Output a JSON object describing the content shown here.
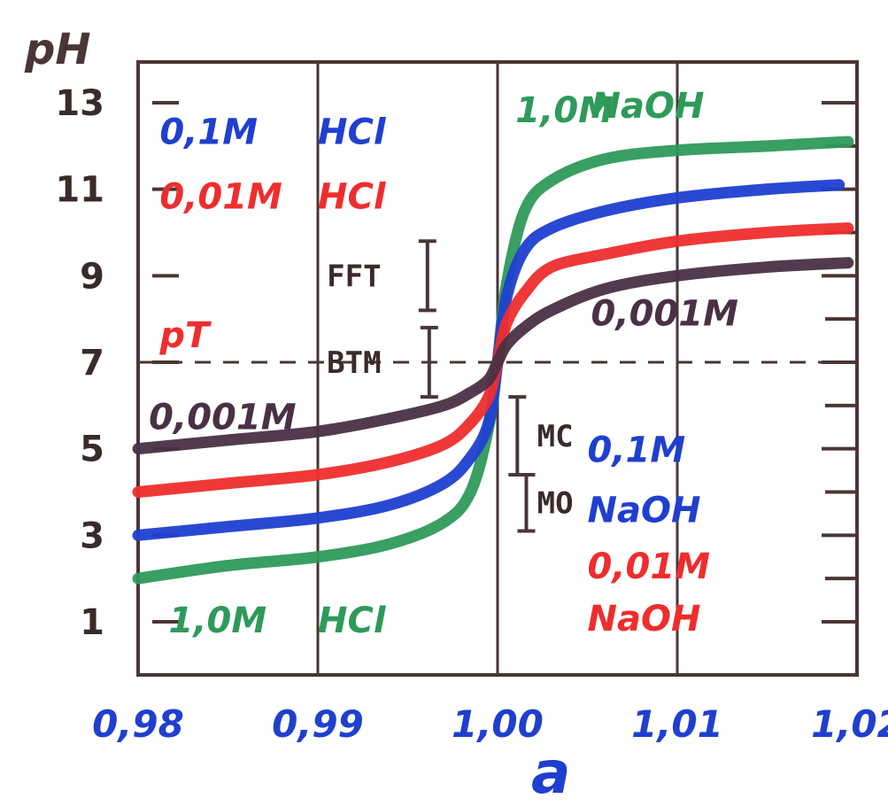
{
  "chart_data": {
    "type": "line",
    "xlabel": "a",
    "ylabel": "pH",
    "xlim": [
      0.98,
      1.02
    ],
    "ylim": [
      0,
      14
    ],
    "x_ticks": [
      "0,98",
      "0,99",
      "1,00",
      "1,01",
      "1,02"
    ],
    "y_ticks": [
      "1",
      "3",
      "5",
      "7",
      "9",
      "11",
      "13"
    ],
    "grid": "vertical",
    "reference_line": {
      "y": 7,
      "style": "dashed"
    },
    "colors": {
      "frame": "#4a3636",
      "green": "#2e9a5a",
      "blue": "#1f3fd0",
      "red": "#ef2d2d",
      "dark": "#4a3046"
    },
    "series": [
      {
        "color": "green",
        "x": [
          0.98,
          0.985,
          0.99,
          0.994,
          0.997,
          0.9985,
          0.9995,
          1.0,
          1.0005,
          1.0015,
          1.003,
          1.006,
          1.01,
          1.015,
          1.0195
        ],
        "y": [
          2.0,
          2.3,
          2.5,
          2.8,
          3.3,
          4.0,
          5.5,
          7.0,
          8.8,
          10.5,
          11.2,
          11.7,
          11.9,
          12.0,
          12.1
        ]
      },
      {
        "color": "blue",
        "x": [
          0.98,
          0.985,
          0.99,
          0.994,
          0.997,
          0.9985,
          0.9995,
          1.0,
          1.0005,
          1.0015,
          1.003,
          1.006,
          1.01,
          1.015,
          1.019
        ],
        "y": [
          3.0,
          3.2,
          3.4,
          3.7,
          4.2,
          4.8,
          5.6,
          7.0,
          8.5,
          9.6,
          10.1,
          10.5,
          10.8,
          11.0,
          11.1
        ]
      },
      {
        "color": "red",
        "x": [
          0.98,
          0.985,
          0.99,
          0.994,
          0.997,
          0.9985,
          0.9995,
          1.0,
          1.0005,
          1.0015,
          1.003,
          1.006,
          1.01,
          1.015,
          1.0195
        ],
        "y": [
          4.0,
          4.2,
          4.4,
          4.7,
          5.1,
          5.6,
          6.2,
          7.0,
          7.9,
          8.6,
          9.2,
          9.5,
          9.8,
          10.0,
          10.1
        ]
      },
      {
        "color": "dark",
        "x": [
          0.98,
          0.985,
          0.99,
          0.994,
          0.997,
          0.9985,
          0.9995,
          1.0,
          1.0005,
          1.0015,
          1.003,
          1.006,
          1.01,
          1.015,
          1.0195
        ],
        "y": [
          5.0,
          5.2,
          5.4,
          5.7,
          6.0,
          6.3,
          6.6,
          7.0,
          7.4,
          7.8,
          8.2,
          8.7,
          9.0,
          9.2,
          9.3
        ]
      }
    ],
    "annotations": [
      {
        "text": "0,1M",
        "color": "blue",
        "x": 0.9812,
        "y": 12.05
      },
      {
        "text": "HCl",
        "color": "blue",
        "x": 0.99,
        "y": 12.05
      },
      {
        "text": "0,01M",
        "color": "red",
        "x": 0.9812,
        "y": 10.55
      },
      {
        "text": "HCl",
        "color": "red",
        "x": 0.99,
        "y": 10.55
      },
      {
        "text": "pT",
        "color": "red",
        "x": 0.9812,
        "y": 7.35
      },
      {
        "text": "0,001M",
        "color": "dark",
        "x": 0.9806,
        "y": 5.45
      },
      {
        "text": "1,0M",
        "color": "green",
        "x": 0.9817,
        "y": 0.75
      },
      {
        "text": "HCl",
        "color": "green",
        "x": 0.99,
        "y": 0.75
      },
      {
        "text": "1,0M",
        "color": "green",
        "x": 1.001,
        "y": 12.55
      },
      {
        "text": "NaOH",
        "color": "green",
        "x": 1.0052,
        "y": 12.65
      },
      {
        "text": "0,001M",
        "color": "dark",
        "x": 1.0052,
        "y": 7.85
      },
      {
        "text": "0,1M",
        "color": "blue",
        "x": 1.005,
        "y": 4.7
      },
      {
        "text": "NaOH",
        "color": "blue",
        "x": 1.005,
        "y": 3.3
      },
      {
        "text": "0,01M",
        "color": "red",
        "x": 1.005,
        "y": 2.0
      },
      {
        "text": "NaOH",
        "color": "red",
        "x": 1.005,
        "y": 0.8
      }
    ],
    "indicators": [
      {
        "name": "FFT",
        "x_label": 0.9905,
        "x_bar": 0.9961,
        "y_low": 8.2,
        "y_high": 9.8
      },
      {
        "name": "BTM",
        "x_label": 0.9905,
        "x_bar": 0.9962,
        "y_low": 6.2,
        "y_high": 7.8
      },
      {
        "name": "MC",
        "x_label": 1.0022,
        "x_bar": 1.0011,
        "y_low": 4.4,
        "y_high": 6.2
      },
      {
        "name": "MO",
        "x_label": 1.0022,
        "x_bar": 1.0016,
        "y_low": 3.1,
        "y_high": 4.4
      }
    ]
  }
}
